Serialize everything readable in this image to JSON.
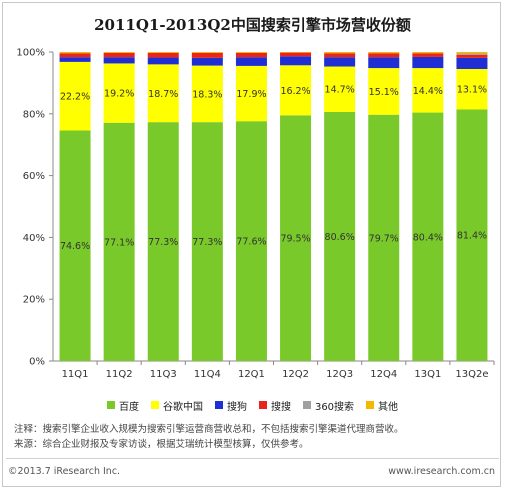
{
  "chart_data": {
    "type": "bar",
    "stacked": true,
    "title": "2011Q1-2013Q2中国搜索引擎市场营收份额",
    "categories": [
      "11Q1",
      "11Q2",
      "11Q3",
      "11Q4",
      "12Q1",
      "12Q2",
      "12Q3",
      "12Q4",
      "13Q1",
      "13Q2e"
    ],
    "ylim": [
      0,
      100
    ],
    "yticks": [
      "0%",
      "20%",
      "40%",
      "60%",
      "80%",
      "100%"
    ],
    "grid": false,
    "legend_position": "bottom",
    "series": [
      {
        "name": "百度",
        "color": "#79c92a",
        "values": [
          74.6,
          77.1,
          77.3,
          77.3,
          77.6,
          79.5,
          80.6,
          79.7,
          80.4,
          81.4
        ],
        "labels": [
          "74.6%",
          "77.1%",
          "77.3%",
          "77.3%",
          "77.6%",
          "79.5%",
          "80.6%",
          "79.7%",
          "80.4%",
          "81.4%"
        ]
      },
      {
        "name": "谷歌中国",
        "color": "#ffff00",
        "values": [
          22.2,
          19.2,
          18.7,
          18.3,
          17.9,
          16.2,
          14.7,
          15.1,
          14.4,
          13.1
        ],
        "labels": [
          "22.2%",
          "19.2%",
          "18.7%",
          "18.3%",
          "17.9%",
          "16.2%",
          "14.7%",
          "15.1%",
          "14.4%",
          "13.1%"
        ]
      },
      {
        "name": "搜狗",
        "color": "#1f2fd3",
        "values": [
          1.5,
          2.0,
          2.2,
          2.5,
          2.8,
          2.9,
          3.0,
          3.5,
          3.6,
          3.6
        ]
      },
      {
        "name": "搜搜",
        "color": "#e8251d",
        "values": [
          1.3,
          1.4,
          1.5,
          1.6,
          1.4,
          1.2,
          1.3,
          1.3,
          1.2,
          1.0
        ]
      },
      {
        "name": "360搜索",
        "color": "#a0a0a0",
        "values": [
          0,
          0,
          0,
          0,
          0,
          0,
          0,
          0,
          0,
          0.4
        ]
      },
      {
        "name": "其他",
        "color": "#f5b800",
        "values": [
          0.4,
          0.3,
          0.3,
          0.3,
          0.3,
          0.2,
          0.4,
          0.4,
          0.4,
          0.5
        ]
      }
    ]
  },
  "notes": {
    "line1": "注释：搜索引擎企业收入规模为搜索引擎运营商营收总和，不包括搜索引擎渠道代理商营收。",
    "line2": "来源：综合企业财报及专家访谈，根据艾瑞统计模型核算，仅供参考。"
  },
  "footer": {
    "left": "©2013.7 iResearch Inc.",
    "right": "www.iresearch.com.cn"
  }
}
